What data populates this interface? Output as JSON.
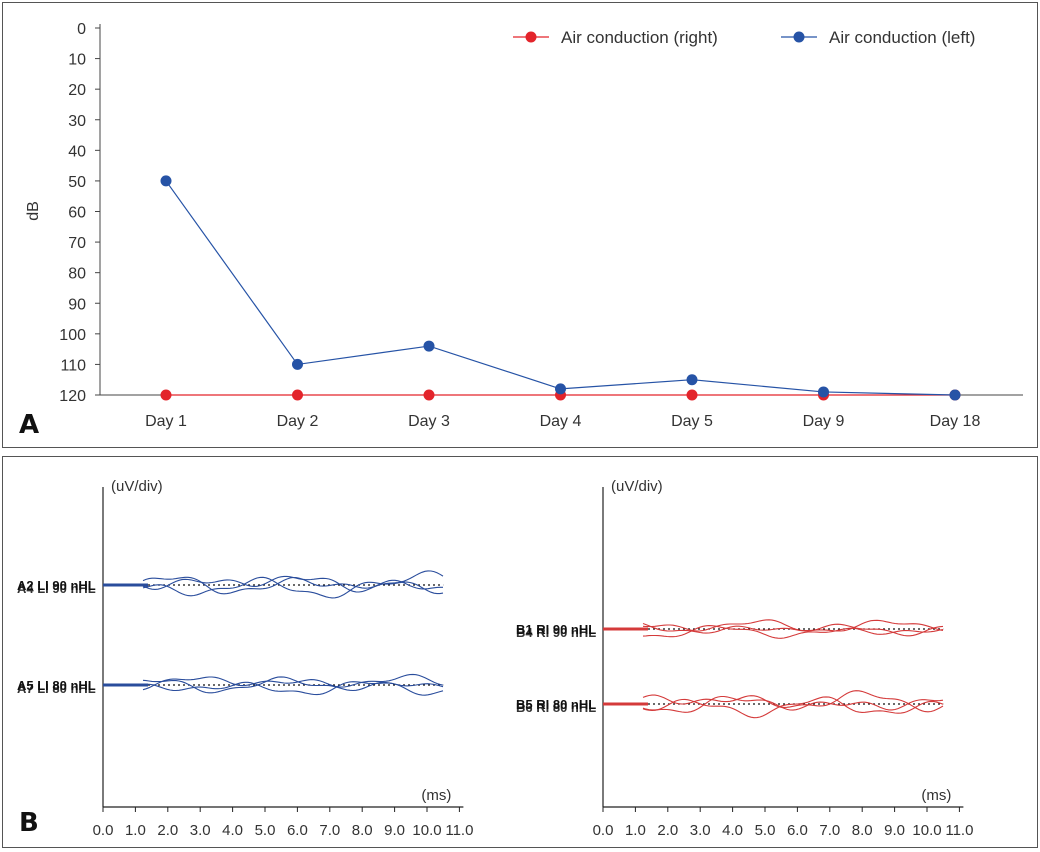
{
  "chart_data": [
    {
      "panel": "A",
      "type": "line",
      "ylabel": "dB",
      "ylim": [
        0,
        120
      ],
      "y_inverted": true,
      "y_ticks": [
        "0",
        "10",
        "20",
        "30",
        "40",
        "50",
        "60",
        "70",
        "80",
        "90",
        "100",
        "110",
        "120"
      ],
      "categories": [
        "Day 1",
        "Day 2",
        "Day 3",
        "Day 4",
        "Day 5",
        "Day 9",
        "Day 18"
      ],
      "series": [
        {
          "name": "Air conduction (right)",
          "color": "#e3242b",
          "values": [
            120,
            120,
            120,
            120,
            120,
            120,
            120
          ]
        },
        {
          "name": "Air conduction (left)",
          "color": "#2653a6",
          "values": [
            50,
            110,
            104,
            118,
            115,
            119,
            120
          ]
        }
      ],
      "legend_position": "top-right"
    },
    {
      "panel": "B-left",
      "type": "line",
      "ylabel": "(uV/div)",
      "xlabel": "(ms)",
      "xlim": [
        0,
        11
      ],
      "x_ticks": [
        "0.0",
        "1.0",
        "2.0",
        "3.0",
        "4.0",
        "5.0",
        "6.0",
        "7.0",
        "8.0",
        "9.0",
        "10.0",
        "11.0"
      ],
      "trace_color": "#2a4d9c",
      "traces": [
        {
          "label": "A2 LI 90 nHL",
          "overlap_label": "A4 LI 90 nHL"
        },
        {
          "label": "A5 LI 80 nHL",
          "overlap_label": "A7 LI 80 nHL"
        }
      ]
    },
    {
      "panel": "B-right",
      "type": "line",
      "ylabel": "(uV/div)",
      "xlabel": "(ms)",
      "xlim": [
        0,
        11
      ],
      "x_ticks": [
        "0.0",
        "1.0",
        "2.0",
        "3.0",
        "4.0",
        "5.0",
        "6.0",
        "7.0",
        "8.0",
        "9.0",
        "10.0",
        "11.0"
      ],
      "trace_color": "#d43a3a",
      "traces": [
        {
          "label": "B1 RI 90 nHL",
          "overlap_label": "B4 RI 90 nHL"
        },
        {
          "label": "B5 RI 80 nHL",
          "overlap_label": "B6 RI 80 nHL"
        }
      ]
    }
  ],
  "panel_labels": {
    "a": "A",
    "b": "B"
  }
}
